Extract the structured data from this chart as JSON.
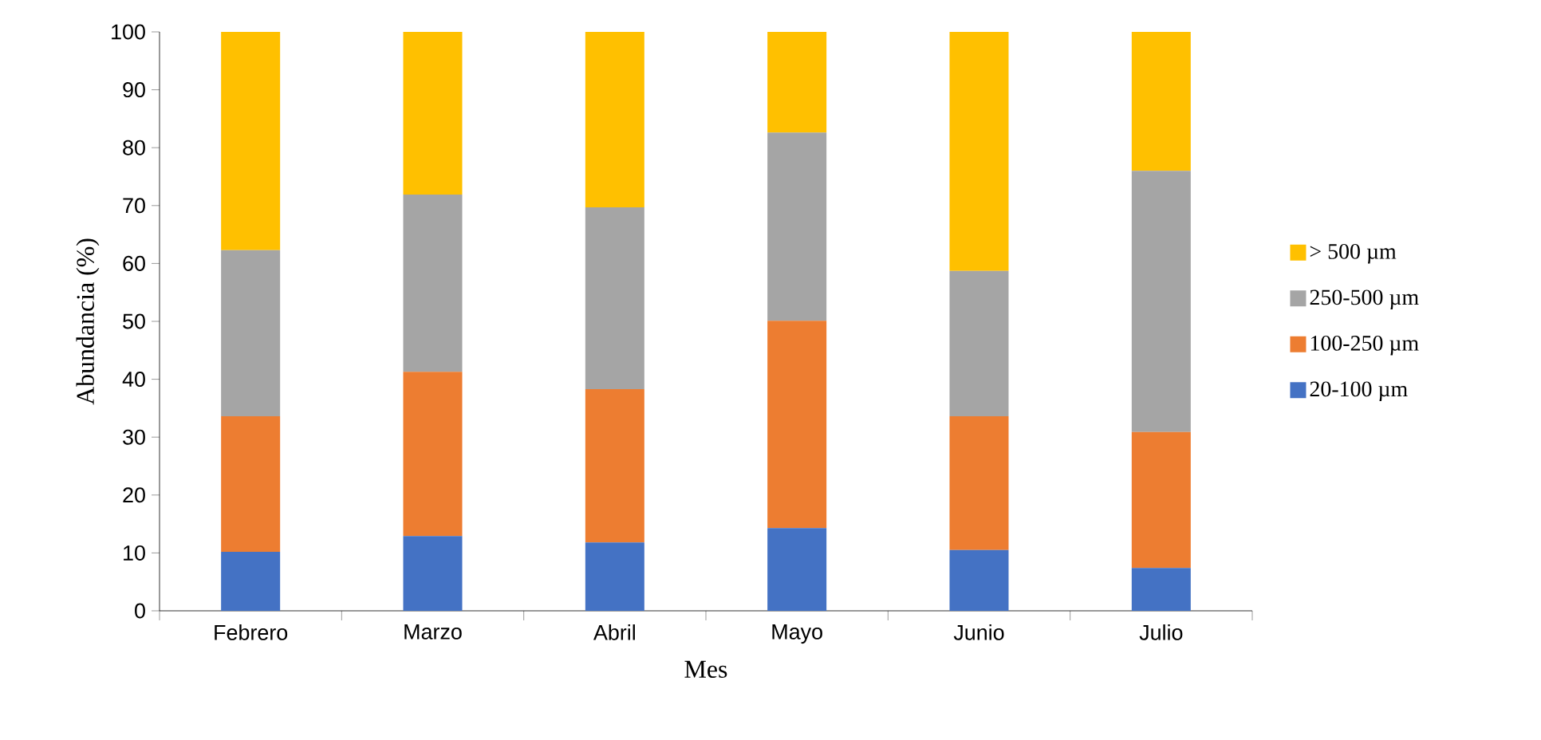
{
  "chart_data": {
    "type": "bar",
    "stacked": true,
    "xlabel": "Mes",
    "ylabel": "Abundancia (%)",
    "categories": [
      "Febrero",
      "Marzo",
      "Abril",
      "Mayo",
      "Junio",
      "Julio"
    ],
    "series": [
      {
        "name": "20-100 µm",
        "color": "#4472c4",
        "values": [
          10.2,
          12.9,
          11.8,
          14.3,
          10.5,
          7.4
        ]
      },
      {
        "name": "100-250 µm",
        "color": "#ed7d31",
        "values": [
          23.4,
          28.4,
          26.5,
          35.8,
          23.1,
          23.5
        ]
      },
      {
        "name": "250-500 µm",
        "color": "#a5a5a5",
        "values": [
          28.7,
          30.6,
          31.4,
          32.5,
          25.1,
          45.1
        ]
      },
      {
        "name": "> 500 µm",
        "color": "#ffc000",
        "values": [
          37.7,
          28.1,
          30.3,
          17.4,
          41.3,
          24.0
        ]
      }
    ],
    "ylim": [
      0,
      100
    ],
    "yticks": [
      0,
      10,
      20,
      30,
      40,
      50,
      60,
      70,
      80,
      90,
      100
    ],
    "grid": false,
    "legend": "right"
  }
}
